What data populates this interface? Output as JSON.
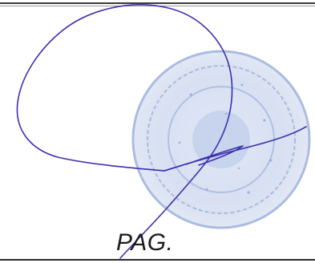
{
  "footer": {
    "page_label": "PAG."
  },
  "colors": {
    "ink": "#3b2fae",
    "stamp": "#8fa6d6",
    "rule": "#2a2a2a"
  },
  "marks": {
    "signature": "handwritten-signature",
    "stamp": "official-seal-stamp"
  }
}
